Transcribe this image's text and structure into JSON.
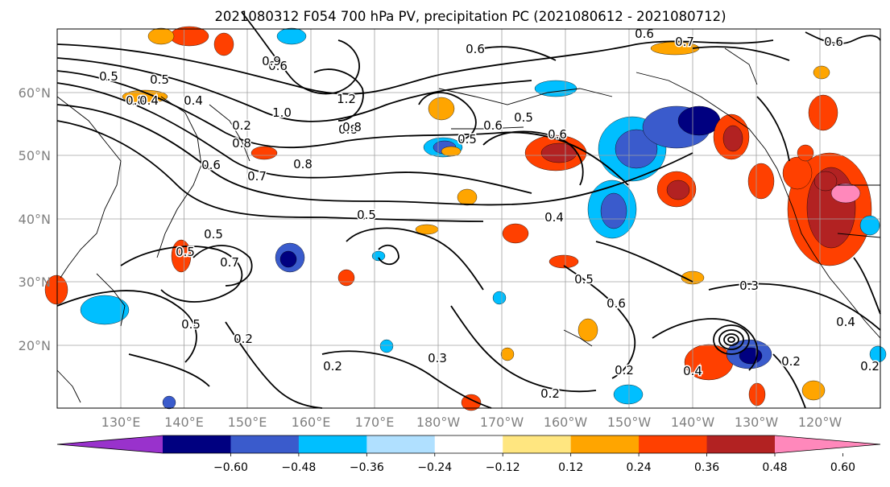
{
  "title": "2021080312 F054 700 hPa PV, precipitation PC (2021080612 - 2021080712)",
  "lat_labels": [
    "60°N",
    "50°N",
    "40°N",
    "30°N",
    "20°N"
  ],
  "lon_labels": [
    "130°E",
    "140°E",
    "150°E",
    "160°E",
    "170°E",
    "180°W",
    "170°W",
    "160°W",
    "150°W",
    "140°W",
    "130°W",
    "120°W"
  ],
  "colorbar": {
    "tick_labels": [
      "−0.60",
      "−0.48",
      "−0.36",
      "−0.24",
      "−0.12",
      "0.12",
      "0.24",
      "0.36",
      "0.48",
      "0.60"
    ],
    "colors": [
      "#9932cc",
      "#000080",
      "#3a5bcc",
      "#00bfff",
      "#b0e0ff",
      "#ffffff",
      "#ffe680",
      "#ffa500",
      "#ff4000",
      "#b22222",
      "#ff88bb"
    ]
  },
  "contour_labels": [
    "0.6",
    "0.7",
    "0.6",
    "0.5",
    "0.6",
    "0.8",
    "0.6",
    "0.5",
    "0.2",
    "0.4",
    "0.8",
    "0.9",
    "1.2",
    "1.0",
    "0.8",
    "0.8",
    "0.6",
    "0.7",
    "0.8",
    "0.5",
    "0.5",
    "0.6",
    "0.5",
    "0.6",
    "0.7",
    "0.5",
    "0.4",
    "0.5",
    "0.6",
    "0.5",
    "0.2",
    "0.2",
    "0.3",
    "0.2",
    "0.2",
    "0.4",
    "0.3",
    "0.2",
    "0.4",
    "0.2",
    "0.5",
    "0.4"
  ]
}
